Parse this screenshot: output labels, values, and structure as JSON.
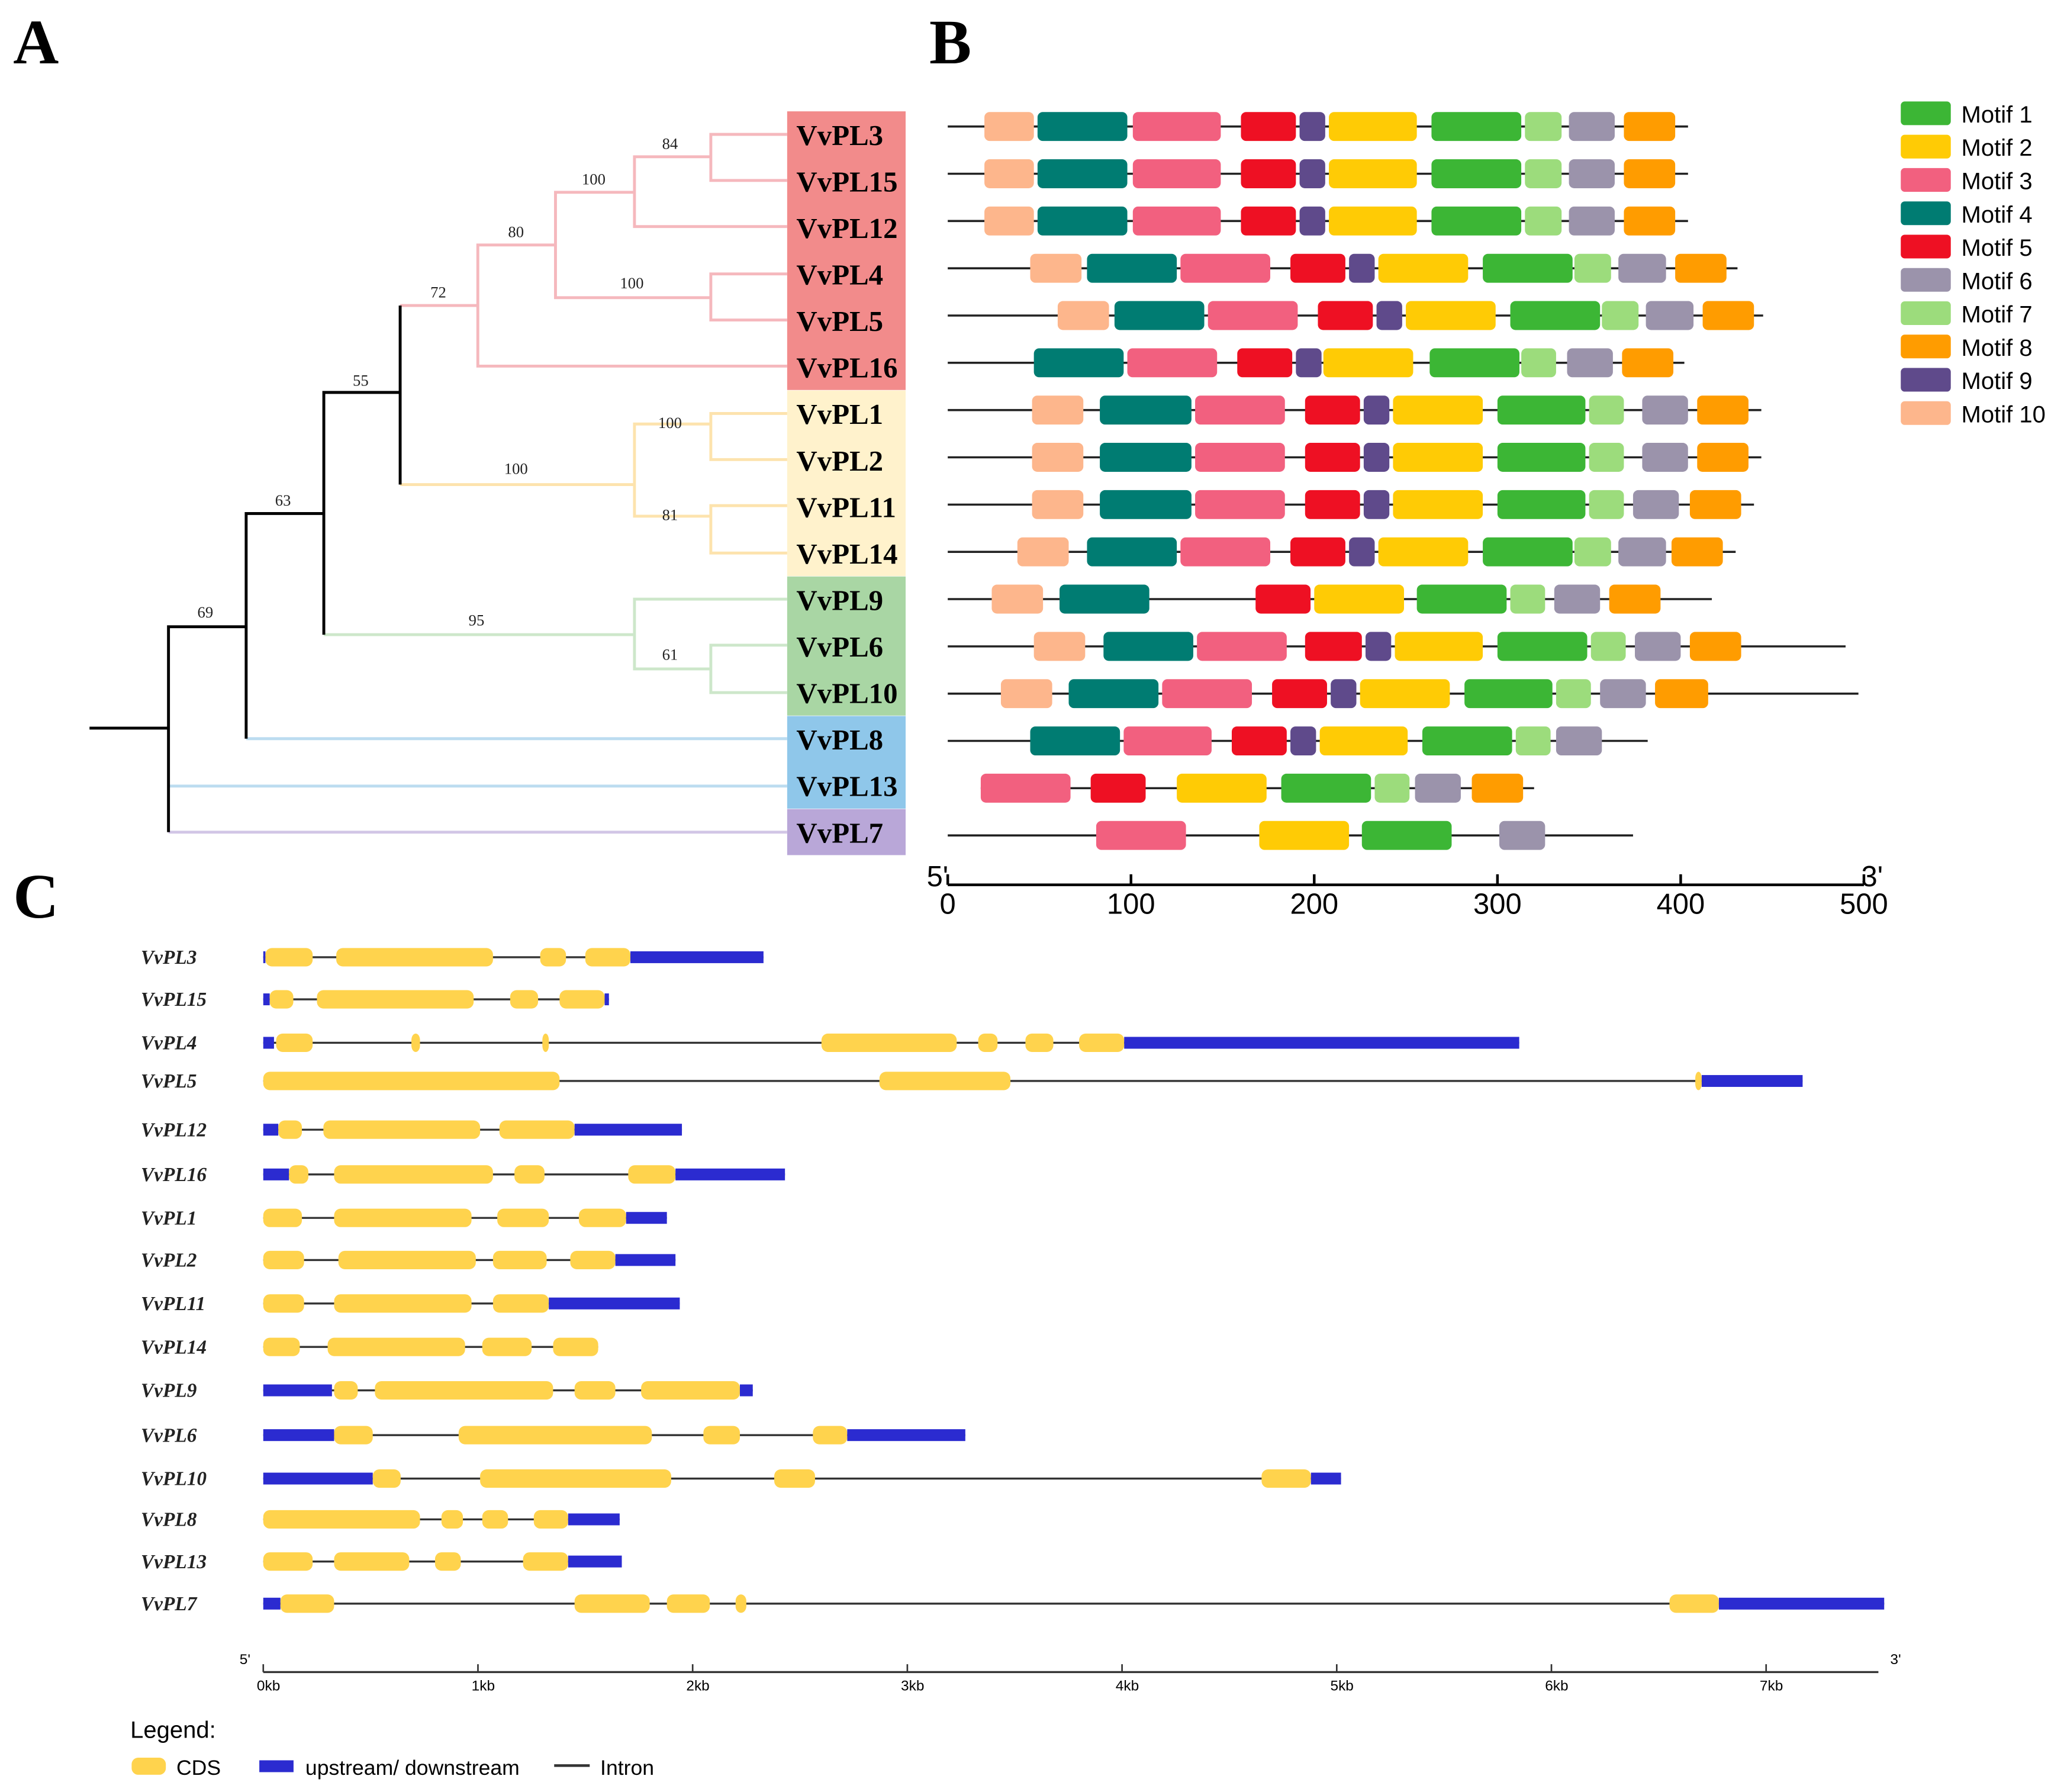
{
  "panels": {
    "a": "A",
    "b": "B",
    "c": "C"
  },
  "tree": {
    "leaves": [
      "VvPL3",
      "VvPL15",
      "VvPL12",
      "VvPL4",
      "VvPL5",
      "VvPL16",
      "VvPL1",
      "VvPL2",
      "VvPL11",
      "VvPL14",
      "VvPL9",
      "VvPL6",
      "VvPL10",
      "VvPL8",
      "VvPL13",
      "VvPL7"
    ],
    "groups": [
      {
        "members": 6,
        "box": "#f28b8b",
        "line": "#f5b8bd"
      },
      {
        "members": 4,
        "box": "#fff2cc",
        "line": "#fde3ad"
      },
      {
        "members": 3,
        "box": "#a9d6a4",
        "line": "#cde7ca"
      },
      {
        "members": 2,
        "box": "#8fc7ea",
        "line": "#bcdcf0"
      },
      {
        "members": 1,
        "box": "#b9a7d8",
        "line": "#d2c6e6"
      }
    ],
    "bootstrap": {
      "n3_15": "84",
      "n12": "100",
      "n4_5": "100",
      "n80": "80",
      "n72": "72",
      "n1_2": "100",
      "n11_14": "81",
      "nyellow": "100",
      "n55": "55",
      "n6_10": "61",
      "ngreen": "95",
      "n63": "63",
      "n69": "69"
    }
  },
  "motif_legend": [
    {
      "label": "Motif 1",
      "color": "#3cb635"
    },
    {
      "label": "Motif 2",
      "color": "#ffcb05"
    },
    {
      "label": "Motif 3",
      "color": "#f2607f"
    },
    {
      "label": "Motif 4",
      "color": "#007c72"
    },
    {
      "label": "Motif 5",
      "color": "#ee1023"
    },
    {
      "label": "Motif 6",
      "color": "#9b93ab"
    },
    {
      "label": "Motif 7",
      "color": "#9cdc7c"
    },
    {
      "label": "Motif 8",
      "color": "#ff9c00"
    },
    {
      "label": "Motif 9",
      "color": "#5f4a8b"
    },
    {
      "label": "Motif 10",
      "color": "#fdb68c"
    }
  ],
  "motif_axis": {
    "min": 0,
    "max": 500,
    "ticks": [
      "0",
      "100",
      "200",
      "300",
      "400",
      "500"
    ],
    "five_prime": "5'",
    "three_prime": "3'"
  },
  "motifs": [
    {
      "gene": "VvPL3",
      "length": 404,
      "m": [
        [
          10,
          20,
          47
        ],
        [
          4,
          49,
          98
        ],
        [
          3,
          101,
          149
        ],
        [
          5,
          160,
          190
        ],
        [
          9,
          192,
          206
        ],
        [
          2,
          208,
          256
        ],
        [
          1,
          264,
          313
        ],
        [
          7,
          315,
          335
        ],
        [
          6,
          339,
          364
        ],
        [
          8,
          369,
          397
        ]
      ]
    },
    {
      "gene": "VvPL15",
      "length": 404,
      "m": [
        [
          10,
          20,
          47
        ],
        [
          4,
          49,
          98
        ],
        [
          3,
          101,
          149
        ],
        [
          5,
          160,
          190
        ],
        [
          9,
          192,
          206
        ],
        [
          2,
          208,
          256
        ],
        [
          1,
          264,
          313
        ],
        [
          7,
          315,
          335
        ],
        [
          6,
          339,
          364
        ],
        [
          8,
          369,
          397
        ]
      ]
    },
    {
      "gene": "VvPL12",
      "length": 404,
      "m": [
        [
          10,
          20,
          47
        ],
        [
          4,
          49,
          98
        ],
        [
          3,
          101,
          149
        ],
        [
          5,
          160,
          190
        ],
        [
          9,
          192,
          206
        ],
        [
          2,
          208,
          256
        ],
        [
          1,
          264,
          313
        ],
        [
          7,
          315,
          335
        ],
        [
          6,
          339,
          364
        ],
        [
          8,
          369,
          397
        ]
      ]
    },
    {
      "gene": "VvPL4",
      "length": 431,
      "m": [
        [
          10,
          45,
          73
        ],
        [
          4,
          76,
          125
        ],
        [
          3,
          127,
          176
        ],
        [
          5,
          187,
          217
        ],
        [
          9,
          219,
          233
        ],
        [
          2,
          235,
          284
        ],
        [
          1,
          292,
          341
        ],
        [
          7,
          342,
          362
        ],
        [
          6,
          366,
          392
        ],
        [
          8,
          397,
          425
        ]
      ]
    },
    {
      "gene": "VvPL5",
      "length": 445,
      "m": [
        [
          10,
          60,
          88
        ],
        [
          4,
          91,
          140
        ],
        [
          3,
          142,
          191
        ],
        [
          5,
          202,
          232
        ],
        [
          9,
          234,
          248
        ],
        [
          2,
          250,
          299
        ],
        [
          1,
          307,
          356
        ],
        [
          7,
          357,
          377
        ],
        [
          6,
          381,
          407
        ],
        [
          8,
          412,
          440
        ]
      ]
    },
    {
      "gene": "VvPL16",
      "length": 402,
      "m": [
        [
          4,
          47,
          96
        ],
        [
          3,
          98,
          147
        ],
        [
          5,
          158,
          188
        ],
        [
          9,
          190,
          204
        ],
        [
          2,
          205,
          254
        ],
        [
          1,
          263,
          312
        ],
        [
          7,
          313,
          332
        ],
        [
          6,
          338,
          363
        ],
        [
          8,
          368,
          396
        ]
      ]
    },
    {
      "gene": "VvPL1",
      "length": 444,
      "m": [
        [
          10,
          46,
          74
        ],
        [
          4,
          83,
          133
        ],
        [
          3,
          135,
          184
        ],
        [
          5,
          195,
          225
        ],
        [
          9,
          227,
          241
        ],
        [
          2,
          243,
          292
        ],
        [
          1,
          300,
          348
        ],
        [
          7,
          350,
          369
        ],
        [
          6,
          379,
          404
        ],
        [
          8,
          409,
          437
        ]
      ]
    },
    {
      "gene": "VvPL2",
      "length": 444,
      "m": [
        [
          10,
          46,
          74
        ],
        [
          4,
          83,
          133
        ],
        [
          3,
          135,
          184
        ],
        [
          5,
          195,
          225
        ],
        [
          9,
          227,
          241
        ],
        [
          2,
          243,
          292
        ],
        [
          1,
          300,
          348
        ],
        [
          7,
          350,
          369
        ],
        [
          6,
          379,
          404
        ],
        [
          8,
          409,
          437
        ]
      ]
    },
    {
      "gene": "VvPL11",
      "length": 440,
      "m": [
        [
          10,
          46,
          74
        ],
        [
          4,
          83,
          133
        ],
        [
          3,
          135,
          184
        ],
        [
          5,
          195,
          225
        ],
        [
          9,
          227,
          241
        ],
        [
          2,
          243,
          292
        ],
        [
          1,
          300,
          348
        ],
        [
          7,
          350,
          369
        ],
        [
          6,
          374,
          399
        ],
        [
          8,
          405,
          433
        ]
      ]
    },
    {
      "gene": "VvPL14",
      "length": 430,
      "m": [
        [
          10,
          38,
          66
        ],
        [
          4,
          76,
          125
        ],
        [
          3,
          127,
          176
        ],
        [
          5,
          187,
          217
        ],
        [
          9,
          219,
          233
        ],
        [
          2,
          235,
          284
        ],
        [
          1,
          292,
          341
        ],
        [
          7,
          342,
          362
        ],
        [
          6,
          366,
          392
        ],
        [
          8,
          395,
          423
        ]
      ]
    },
    {
      "gene": "VvPL9",
      "length": 417,
      "m": [
        [
          10,
          24,
          52
        ],
        [
          4,
          61,
          110
        ],
        [
          5,
          168,
          198
        ],
        [
          2,
          200,
          249
        ],
        [
          1,
          256,
          305
        ],
        [
          7,
          307,
          326
        ],
        [
          6,
          331,
          356
        ],
        [
          8,
          361,
          389
        ]
      ]
    },
    {
      "gene": "VvPL6",
      "length": 490,
      "m": [
        [
          10,
          47,
          75
        ],
        [
          4,
          85,
          134
        ],
        [
          3,
          136,
          185
        ],
        [
          5,
          195,
          226
        ],
        [
          9,
          228,
          242
        ],
        [
          2,
          244,
          292
        ],
        [
          1,
          300,
          349
        ],
        [
          7,
          351,
          370
        ],
        [
          6,
          375,
          400
        ],
        [
          8,
          405,
          433
        ]
      ]
    },
    {
      "gene": "VvPL10",
      "length": 497,
      "m": [
        [
          10,
          29,
          57
        ],
        [
          4,
          66,
          115
        ],
        [
          3,
          117,
          166
        ],
        [
          5,
          177,
          207
        ],
        [
          9,
          209,
          223
        ],
        [
          2,
          225,
          274
        ],
        [
          1,
          282,
          330
        ],
        [
          7,
          332,
          351
        ],
        [
          6,
          356,
          381
        ],
        [
          8,
          386,
          415
        ]
      ]
    },
    {
      "gene": "VvPL8",
      "length": 382,
      "m": [
        [
          4,
          45,
          94
        ],
        [
          3,
          96,
          144
        ],
        [
          5,
          155,
          185
        ],
        [
          9,
          187,
          201
        ],
        [
          2,
          203,
          251
        ],
        [
          1,
          259,
          308
        ],
        [
          7,
          310,
          329
        ],
        [
          6,
          332,
          357
        ]
      ]
    },
    {
      "gene": "VvPL13",
      "start": 18,
      "length": 320,
      "m": [
        [
          3,
          18,
          67
        ],
        [
          5,
          78,
          108
        ],
        [
          2,
          125,
          174
        ],
        [
          1,
          182,
          231
        ],
        [
          7,
          233,
          252
        ],
        [
          6,
          255,
          280
        ],
        [
          8,
          286,
          314
        ]
      ]
    },
    {
      "gene": "VvPL7",
      "length": 374,
      "m": [
        [
          3,
          81,
          130
        ],
        [
          2,
          170,
          219
        ],
        [
          1,
          226,
          275
        ],
        [
          6,
          301,
          326
        ]
      ]
    }
  ],
  "gene_axis": {
    "max_kb": 7.55,
    "ticks": [
      "0kb",
      "1kb",
      "2kb",
      "3kb",
      "4kb",
      "5kb",
      "6kb",
      "7kb"
    ],
    "five_prime": "5'",
    "three_prime": "3'"
  },
  "gene_colors": {
    "cds": "#ffd34d",
    "utr": "#2b2bd0",
    "intron": "#333333"
  },
  "genes": [
    {
      "name": "VvPL3",
      "s": [
        [
          "u",
          0,
          0.01
        ],
        [
          "c",
          0.01,
          0.23
        ],
        [
          "c",
          0.34,
          1.07
        ],
        [
          "c",
          1.29,
          1.41
        ],
        [
          "c",
          1.5,
          1.71
        ],
        [
          "u",
          1.71,
          2.33
        ]
      ]
    },
    {
      "name": "VvPL15",
      "s": [
        [
          "u",
          0,
          0.03
        ],
        [
          "c",
          0.03,
          0.14
        ],
        [
          "c",
          0.25,
          0.98
        ],
        [
          "c",
          1.15,
          1.28
        ],
        [
          "c",
          1.38,
          1.59
        ],
        [
          "u",
          1.59,
          1.61
        ]
      ]
    },
    {
      "name": "VvPL4",
      "s": [
        [
          "u",
          0,
          0.05
        ],
        [
          "c",
          0.06,
          0.23
        ],
        [
          "c",
          0.69,
          0.73
        ],
        [
          "c",
          1.3,
          1.33
        ],
        [
          "c",
          2.6,
          3.23
        ],
        [
          "c",
          3.33,
          3.42
        ],
        [
          "c",
          3.55,
          3.68
        ],
        [
          "c",
          3.8,
          4.01
        ],
        [
          "u",
          4.01,
          5.85
        ]
      ]
    },
    {
      "name": "VvPL5",
      "s": [
        [
          "c",
          0,
          1.38
        ],
        [
          "c",
          2.87,
          3.48
        ],
        [
          "c",
          6.67,
          6.7
        ],
        [
          "u",
          6.7,
          7.17
        ]
      ]
    },
    {
      "name": "VvPL12",
      "s": [
        [
          "u",
          0,
          0.07
        ],
        [
          "c",
          0.07,
          0.18
        ],
        [
          "c",
          0.28,
          1.01
        ],
        [
          "c",
          1.1,
          1.45
        ],
        [
          "u",
          1.45,
          1.95
        ]
      ]
    },
    {
      "name": "VvPL16",
      "s": [
        [
          "u",
          0,
          0.12
        ],
        [
          "c",
          0.12,
          0.21
        ],
        [
          "c",
          0.33,
          1.07
        ],
        [
          "c",
          1.17,
          1.31
        ],
        [
          "c",
          1.7,
          1.92
        ],
        [
          "u",
          1.92,
          2.43
        ]
      ]
    },
    {
      "name": "VvPL1",
      "s": [
        [
          "c",
          0,
          0.18
        ],
        [
          "c",
          0.33,
          0.97
        ],
        [
          "c",
          1.09,
          1.33
        ],
        [
          "c",
          1.47,
          1.69
        ],
        [
          "u",
          1.69,
          1.88
        ]
      ]
    },
    {
      "name": "VvPL2",
      "s": [
        [
          "c",
          0,
          0.19
        ],
        [
          "c",
          0.35,
          0.99
        ],
        [
          "c",
          1.07,
          1.32
        ],
        [
          "c",
          1.43,
          1.64
        ],
        [
          "u",
          1.64,
          1.92
        ]
      ]
    },
    {
      "name": "VvPL11",
      "s": [
        [
          "c",
          0,
          0.19
        ],
        [
          "c",
          0.33,
          0.97
        ],
        [
          "c",
          1.07,
          1.33
        ],
        [
          "u",
          1.33,
          1.94
        ]
      ]
    },
    {
      "name": "VvPL14",
      "s": [
        [
          "c",
          0,
          0.17
        ],
        [
          "c",
          0.3,
          0.94
        ],
        [
          "c",
          1.02,
          1.25
        ],
        [
          "c",
          1.35,
          1.56
        ]
      ]
    },
    {
      "name": "VvPL9",
      "s": [
        [
          "u",
          0,
          0.32
        ],
        [
          "c",
          0.33,
          0.44
        ],
        [
          "c",
          0.52,
          1.35
        ],
        [
          "c",
          1.45,
          1.64
        ],
        [
          "c",
          1.76,
          2.22
        ],
        [
          "u",
          2.22,
          2.28
        ]
      ]
    },
    {
      "name": "VvPL6",
      "s": [
        [
          "u",
          0,
          0.33
        ],
        [
          "c",
          0.33,
          0.51
        ],
        [
          "c",
          0.91,
          1.81
        ],
        [
          "c",
          2.05,
          2.22
        ],
        [
          "c",
          2.56,
          2.72
        ],
        [
          "u",
          2.72,
          3.27
        ]
      ]
    },
    {
      "name": "VvPL10",
      "s": [
        [
          "u",
          0,
          0.51
        ],
        [
          "c",
          0.51,
          0.64
        ],
        [
          "c",
          1.01,
          1.9
        ],
        [
          "c",
          2.38,
          2.57
        ],
        [
          "c",
          4.65,
          4.88
        ],
        [
          "u",
          4.88,
          5.02
        ]
      ]
    },
    {
      "name": "VvPL8",
      "s": [
        [
          "c",
          0,
          0.73
        ],
        [
          "c",
          0.83,
          0.93
        ],
        [
          "c",
          1.02,
          1.14
        ],
        [
          "c",
          1.26,
          1.42
        ],
        [
          "u",
          1.42,
          1.66
        ]
      ]
    },
    {
      "name": "VvPL13",
      "s": [
        [
          "c",
          0,
          0.23
        ],
        [
          "c",
          0.33,
          0.68
        ],
        [
          "c",
          0.8,
          0.92
        ],
        [
          "c",
          1.21,
          1.42
        ],
        [
          "u",
          1.42,
          1.67
        ]
      ]
    },
    {
      "name": "VvPL7",
      "s": [
        [
          "u",
          0,
          0.08
        ],
        [
          "c",
          0.08,
          0.33
        ],
        [
          "c",
          1.45,
          1.8
        ],
        [
          "c",
          1.88,
          2.08
        ],
        [
          "c",
          2.2,
          2.25
        ],
        [
          "c",
          6.55,
          6.78
        ],
        [
          "u",
          6.78,
          7.55
        ]
      ]
    }
  ],
  "gene_legend": {
    "title": "Legend:",
    "cds": "CDS",
    "utr": "upstream/ downstream",
    "intron": "Intron"
  }
}
